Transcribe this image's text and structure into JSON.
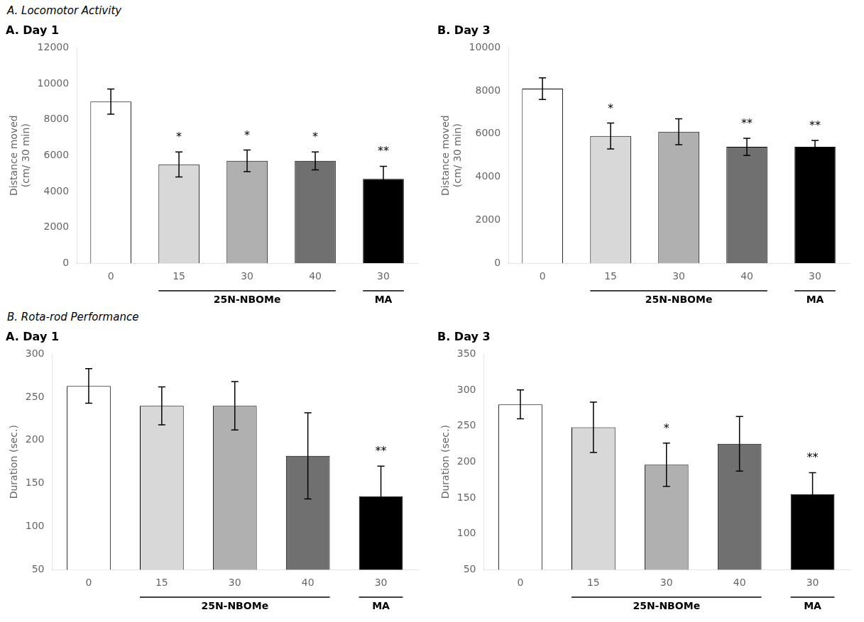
{
  "chart_data": [
    {
      "type": "bar",
      "title": "A. Day 1",
      "categories": [
        "0",
        "15",
        "30",
        "40",
        "30"
      ],
      "values": [
        9000,
        5500,
        5700,
        5700,
        4700
      ],
      "errors": [
        700,
        700,
        600,
        500,
        700
      ],
      "significance": [
        null,
        "*",
        "*",
        "*",
        "**"
      ],
      "groups": [
        null,
        "25N-NBOMe",
        "25N-NBOMe",
        "25N-NBOMe",
        "MA"
      ],
      "colors": [
        "#ffffff",
        "#d8d8d8",
        "#b0b0b0",
        "#707070",
        "#000000"
      ],
      "ylabel": "Distance moved\n(cm/ 30 min)",
      "ylim": [
        0,
        12000
      ],
      "yticks": [
        0,
        2000,
        4000,
        6000,
        8000,
        10000,
        12000
      ],
      "grid": false,
      "annotations": [
        {
          "text": "A. Locomotor Activity"
        }
      ]
    },
    {
      "type": "bar",
      "title": "B. Day 3",
      "categories": [
        "0",
        "15",
        "30",
        "40",
        "30"
      ],
      "values": [
        8100,
        5900,
        6100,
        5400,
        5400
      ],
      "errors": [
        500,
        600,
        600,
        400,
        300
      ],
      "significance": [
        null,
        "*",
        null,
        "**",
        "**"
      ],
      "groups": [
        null,
        "25N-NBOMe",
        "25N-NBOMe",
        "25N-NBOMe",
        "MA"
      ],
      "colors": [
        "#ffffff",
        "#d8d8d8",
        "#b0b0b0",
        "#707070",
        "#000000"
      ],
      "ylabel": "Distance moved\n(cm/ 30 min)",
      "ylim": [
        0,
        10000
      ],
      "yticks": [
        0,
        2000,
        4000,
        6000,
        8000,
        10000
      ],
      "grid": false
    },
    {
      "type": "bar",
      "title": "A. Day 1",
      "categories": [
        "0",
        "15",
        "30",
        "40",
        "30"
      ],
      "values": [
        263,
        240,
        240,
        182,
        135
      ],
      "errors": [
        20,
        22,
        28,
        50,
        35
      ],
      "significance": [
        null,
        null,
        null,
        null,
        "**"
      ],
      "groups": [
        null,
        "25N-NBOMe",
        "25N-NBOMe",
        "25N-NBOMe",
        "MA"
      ],
      "colors": [
        "#ffffff",
        "#d8d8d8",
        "#b0b0b0",
        "#707070",
        "#000000"
      ],
      "ylabel": "Duration (sec.)",
      "ylim": [
        50,
        300
      ],
      "yticks": [
        50,
        100,
        150,
        200,
        250,
        300
      ],
      "grid": false,
      "annotations": [
        {
          "text": "B. Rota-rod Performance"
        }
      ]
    },
    {
      "type": "bar",
      "title": "B. Day 3",
      "categories": [
        "0",
        "15",
        "30",
        "40",
        "30"
      ],
      "values": [
        280,
        248,
        196,
        225,
        155
      ],
      "errors": [
        20,
        35,
        30,
        38,
        30
      ],
      "significance": [
        null,
        null,
        "*",
        null,
        "**"
      ],
      "groups": [
        null,
        "25N-NBOMe",
        "25N-NBOMe",
        "25N-NBOMe",
        "MA"
      ],
      "colors": [
        "#ffffff",
        "#d8d8d8",
        "#b0b0b0",
        "#707070",
        "#000000"
      ],
      "ylabel": "Duration (sec.)",
      "ylim": [
        50,
        350
      ],
      "yticks": [
        50,
        100,
        150,
        200,
        250,
        300,
        350
      ],
      "grid": false
    }
  ]
}
